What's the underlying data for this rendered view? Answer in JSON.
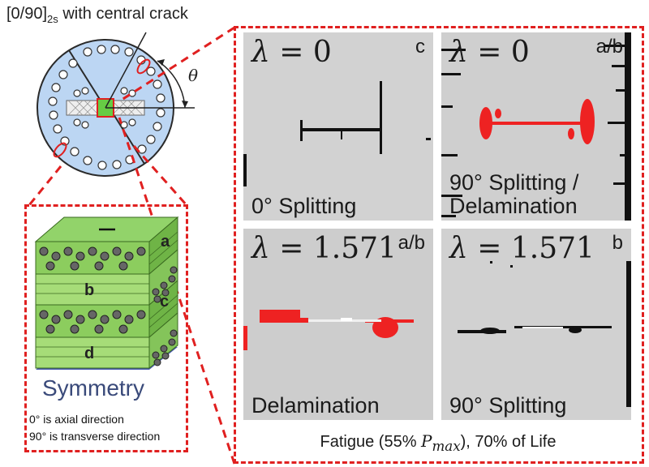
{
  "title": {
    "main": "[0/90]",
    "sub": "2s",
    "rest": " with central crack"
  },
  "specimen": {
    "angle_label": "θ"
  },
  "layup": {
    "layers": [
      "a",
      "b",
      "c",
      "d"
    ],
    "symmetry_label": "Symmetry",
    "notes": [
      "0° is axial direction",
      "90° is transverse direction"
    ]
  },
  "panels": [
    {
      "lambda": "0",
      "label": "c",
      "mode": "0° Splitting"
    },
    {
      "lambda": "0",
      "label": "a/b",
      "mode_line1": "90° Splitting /",
      "mode_line2": "Delamination"
    },
    {
      "lambda": "1.571",
      "label": "a/b",
      "mode": "Delamination"
    },
    {
      "lambda": "1.571",
      "label": "b",
      "mode": "90° Splitting"
    }
  ],
  "lambda_symbol": "λ",
  "caption": {
    "prefix": "Fatigue (55% ",
    "var": "P",
    "sub": "max",
    "suffix": "), 70% of Life"
  },
  "colors": {
    "dashed_red": "#e02020",
    "laminate_green": "#7ec85a",
    "specimen_blue": "#bcd6f3",
    "damage_red": "#ee2222"
  }
}
